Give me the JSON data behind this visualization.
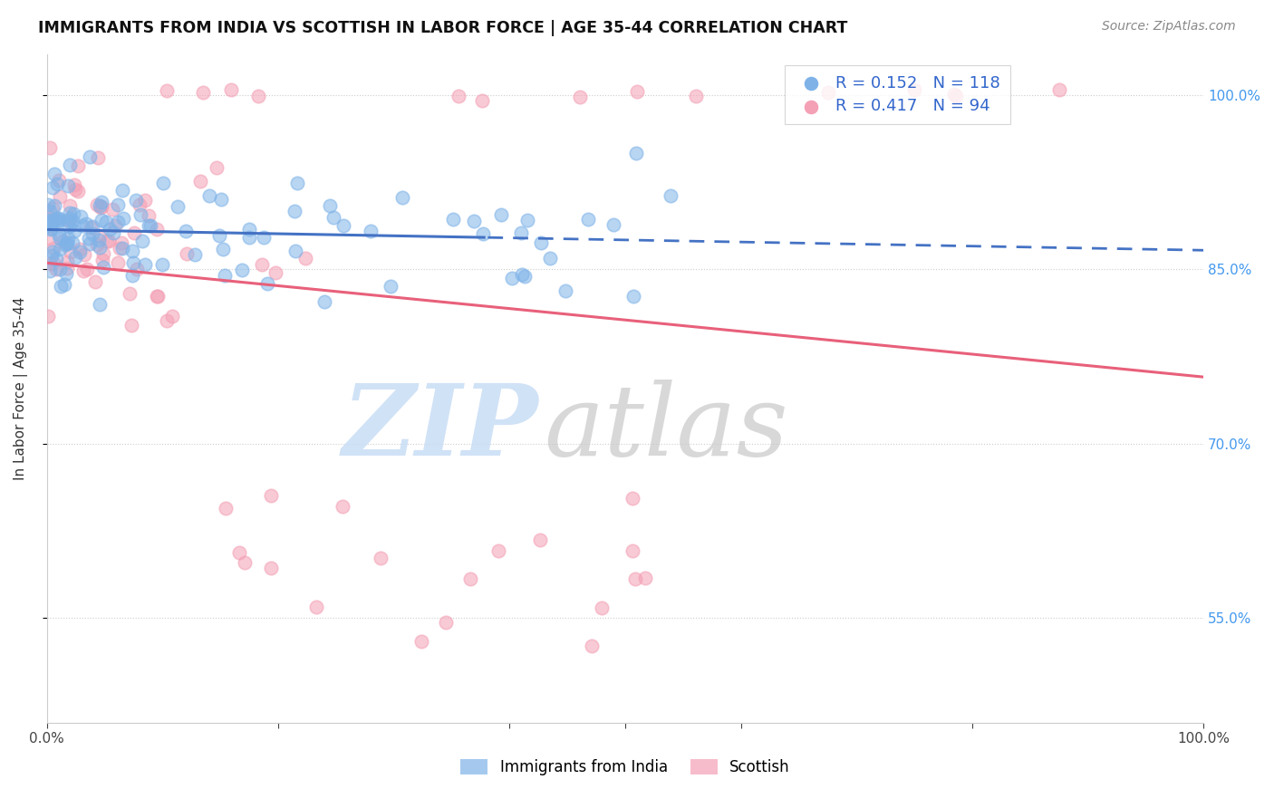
{
  "title": "IMMIGRANTS FROM INDIA VS SCOTTISH IN LABOR FORCE | AGE 35-44 CORRELATION CHART",
  "source": "Source: ZipAtlas.com",
  "ylabel": "In Labor Force | Age 35-44",
  "ytick_labels": [
    "100.0%",
    "85.0%",
    "70.0%",
    "55.0%"
  ],
  "ytick_values": [
    1.0,
    0.85,
    0.7,
    0.55
  ],
  "xlim": [
    0.0,
    1.0
  ],
  "ylim": [
    0.46,
    1.035
  ],
  "r_india": 0.152,
  "n_india": 118,
  "r_scottish": 0.417,
  "n_scottish": 94,
  "india_color": "#7fb3e8",
  "scottish_color": "#f4a0b5",
  "india_line_color": "#4472c4",
  "scottish_line_color": "#e8607a",
  "legend_label_india": "Immigrants from India",
  "legend_label_scottish": "Scottish",
  "background_color": "#ffffff",
  "india_line_solid_end": 0.38,
  "watermark_zip_color": "#c8ddf5",
  "watermark_atlas_color": "#c8c8c8"
}
